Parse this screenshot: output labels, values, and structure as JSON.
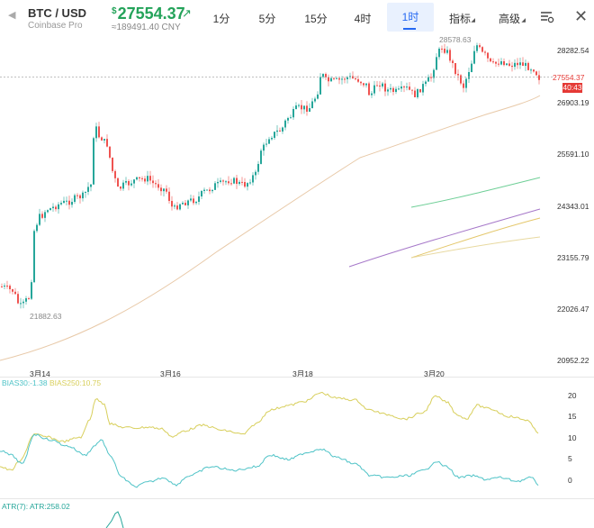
{
  "header": {
    "pair": "BTC / USD",
    "exchange": "Coinbase Pro",
    "price_currency": "$",
    "price": "27554.37",
    "cny": "≈189491.40 CNY",
    "tabs": [
      "1分",
      "5分",
      "15分",
      "4时",
      "1时",
      "指标",
      "高级"
    ],
    "active_tab": "1时"
  },
  "chart": {
    "y_axis": [
      "28282.54",
      "26903.19",
      "25591.10",
      "24343.01",
      "23155.79",
      "22026.47",
      "20952.22"
    ],
    "x_axis": [
      "3月14",
      "3月16",
      "3月18",
      "3月20"
    ],
    "current_price": "27554.37",
    "countdown": "40:43",
    "high_label": "28578.63",
    "low_label": "21882.63",
    "colors": {
      "up": "#26a69a",
      "down": "#ef5350",
      "ma_long": "#e8c9a8"
    }
  },
  "bias": {
    "label30": "BIAS30:-1.38",
    "label250": "BIAS250:10.75",
    "axis": [
      "20",
      "15",
      "10",
      "5",
      "0"
    ],
    "color30": "#4fc3c7",
    "color250": "#d8cf5c"
  },
  "atr": {
    "label": "ATR(7): ATR:258.02"
  }
}
